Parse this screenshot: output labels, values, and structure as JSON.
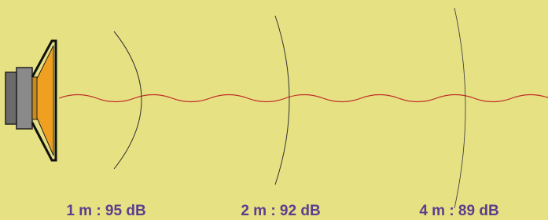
{
  "labels": [
    "1 m : 95 dB",
    "2 m : 92 dB",
    "4 m : 89 dB"
  ]
}
